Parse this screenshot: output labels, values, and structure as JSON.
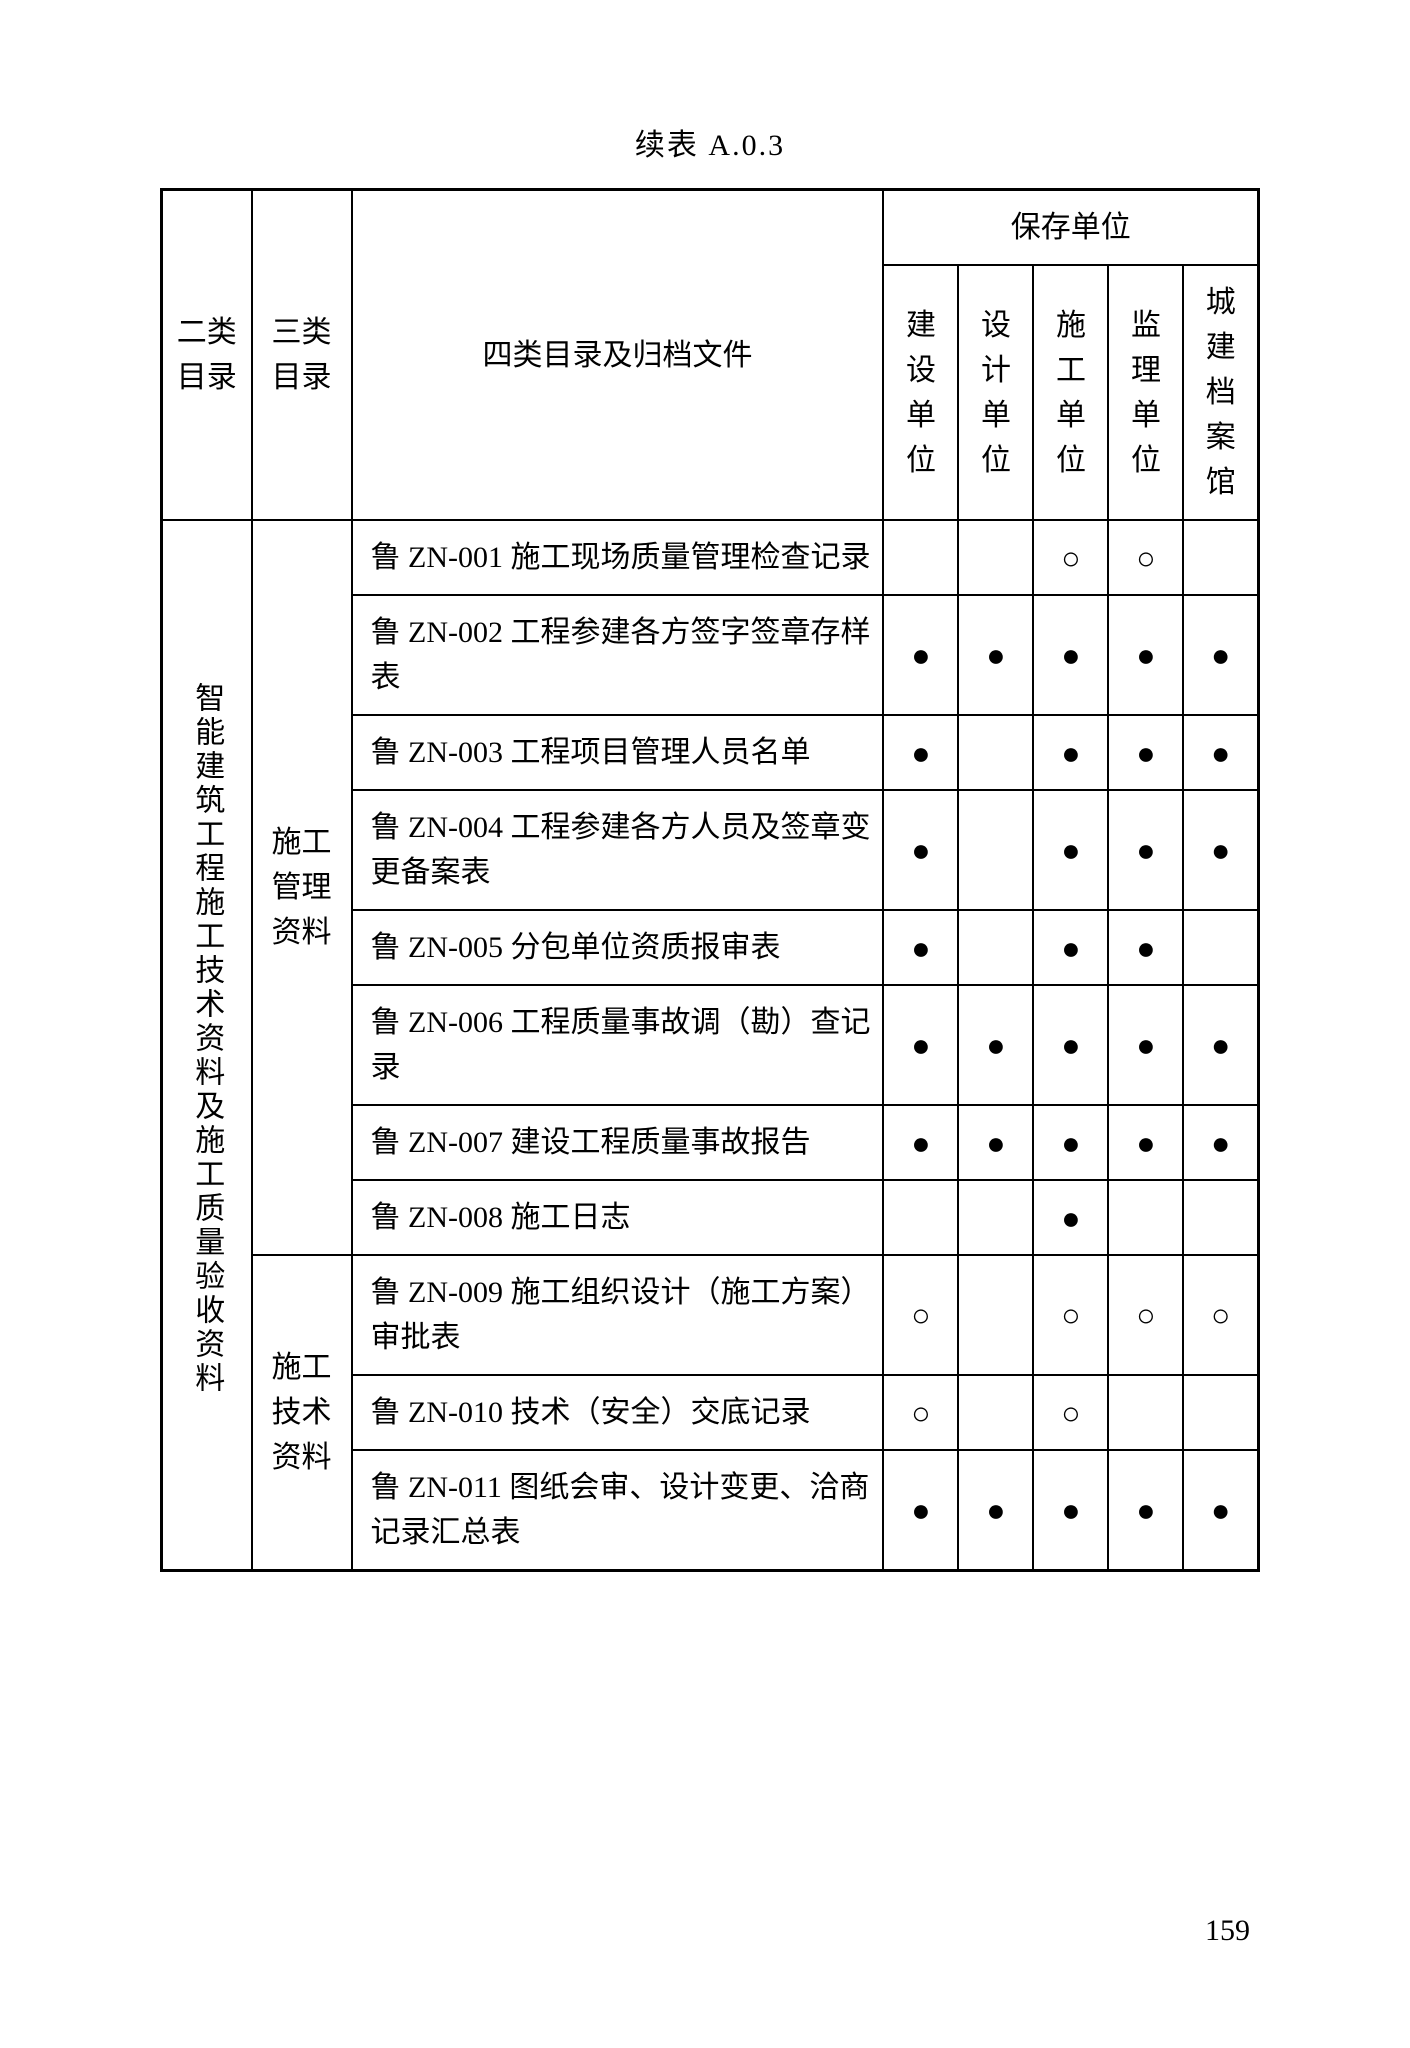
{
  "caption": "续表 A.0.3",
  "page_number": "159",
  "headers": {
    "cat2": "二类目录",
    "cat3": "三类目录",
    "doc": "四类目录及归档文件",
    "storage_group": "保存单位",
    "units": {
      "u1_l1": "建设",
      "u1_l2": "单位",
      "u2_l1": "设计",
      "u2_l2": "单位",
      "u3_l1": "施工",
      "u3_l2": "单位",
      "u4_l1": "监理",
      "u4_l2": "单位",
      "u5_l1": "城建",
      "u5_l2": "档案",
      "u5_l3": "馆"
    }
  },
  "cat2_label": "智能建筑工程施工技术资料及施工质量验收资料",
  "groups": {
    "g1_label_l1": "施工",
    "g1_label_l2": "管理",
    "g1_label_l3": "资料",
    "g2_label_l1": "施工",
    "g2_label_l2": "技术",
    "g2_label_l3": "资料"
  },
  "rows": {
    "r1": {
      "doc": "鲁 ZN-001 施工现场质量管理检查记录",
      "m1": "",
      "m2": "",
      "m3": "○",
      "m4": "○",
      "m5": ""
    },
    "r2": {
      "doc": "鲁 ZN-002 工程参建各方签字签章存样表",
      "m1": "●",
      "m2": "●",
      "m3": "●",
      "m4": "●",
      "m5": "●"
    },
    "r3": {
      "doc": "鲁 ZN-003 工程项目管理人员名单",
      "m1": "●",
      "m2": "",
      "m3": "●",
      "m4": "●",
      "m5": "●"
    },
    "r4": {
      "doc": "鲁 ZN-004 工程参建各方人员及签章变更备案表",
      "m1": "●",
      "m2": "",
      "m3": "●",
      "m4": "●",
      "m5": "●"
    },
    "r5": {
      "doc": "鲁 ZN-005 分包单位资质报审表",
      "m1": "●",
      "m2": "",
      "m3": "●",
      "m4": "●",
      "m5": ""
    },
    "r6": {
      "doc": "鲁 ZN-006 工程质量事故调（勘）查记录",
      "m1": "●",
      "m2": "●",
      "m3": "●",
      "m4": "●",
      "m5": "●"
    },
    "r7": {
      "doc": "鲁 ZN-007 建设工程质量事故报告",
      "m1": "●",
      "m2": "●",
      "m3": "●",
      "m4": "●",
      "m5": "●"
    },
    "r8": {
      "doc": "鲁 ZN-008 施工日志",
      "m1": "",
      "m2": "",
      "m3": "●",
      "m4": "",
      "m5": ""
    },
    "r9": {
      "doc": "鲁 ZN-009 施工组织设计（施工方案）审批表",
      "m1": "○",
      "m2": "",
      "m3": "○",
      "m4": "○",
      "m5": "○"
    },
    "r10": {
      "doc": "鲁 ZN-010 技术（安全）交底记录",
      "m1": "○",
      "m2": "",
      "m3": "○",
      "m4": "",
      "m5": ""
    },
    "r11": {
      "doc": "鲁 ZN-011 图纸会审、设计变更、洽商记录汇总表",
      "m1": "●",
      "m2": "●",
      "m3": "●",
      "m4": "●",
      "m5": "●"
    }
  },
  "style": {
    "filled_mark": "●",
    "hollow_mark": "○",
    "border_color": "#000000",
    "background": "#ffffff",
    "font_family": "SimSun",
    "caption_fontsize": 30,
    "cell_fontsize": 30
  }
}
